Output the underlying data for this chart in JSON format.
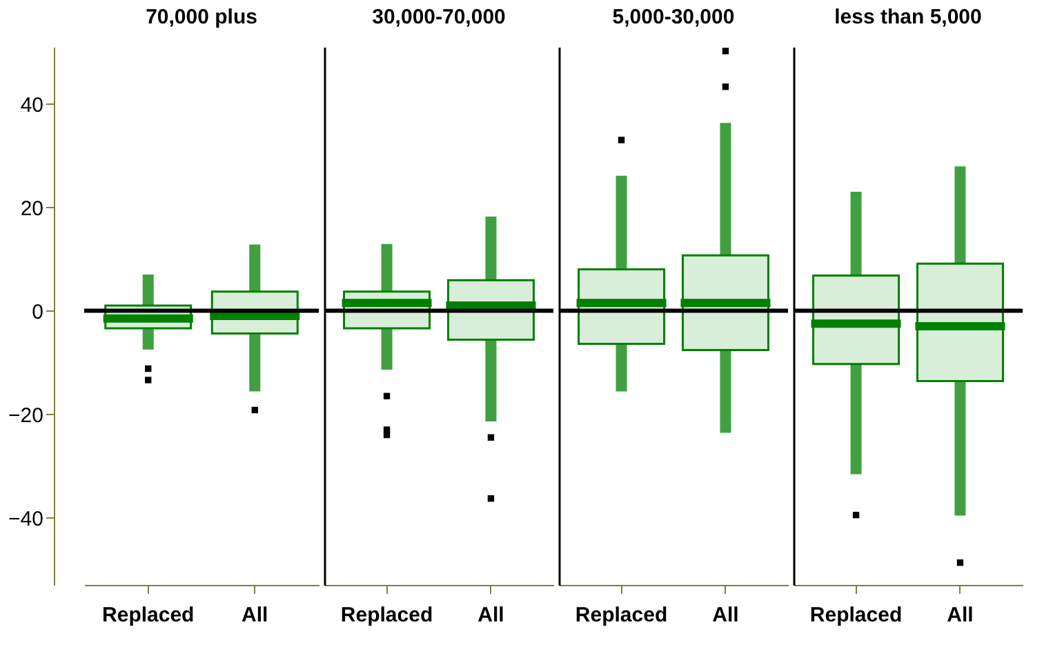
{
  "chart_data": [
    {
      "type": "box",
      "title": "70,000 plus",
      "categories": [
        "Replaced",
        "All"
      ],
      "ylim": [
        -53,
        51
      ],
      "yticks": [
        -40,
        -20,
        0,
        20,
        40
      ],
      "marker": "square",
      "ref_lines": [
        {
          "axis": "y",
          "value": 0,
          "color": "#000000"
        }
      ],
      "series": [
        {
          "color": "#008000",
          "boxes": [
            {
              "low": -7.5,
              "q1": -3.4,
              "median": -1.5,
              "q3": 1,
              "high": 7,
              "outliers": [
                -11.2,
                -13.4
              ]
            },
            {
              "low": -15.6,
              "q1": -4.4,
              "median": -1,
              "q3": 3.7,
              "high": 12.8,
              "outliers": [
                -19.2
              ]
            }
          ]
        }
      ]
    },
    {
      "type": "box",
      "title": "30,000-70,000",
      "categories": [
        "Replaced",
        "All"
      ],
      "ylim": [
        -53,
        51
      ],
      "yticks": [
        -40,
        -20,
        0,
        20,
        40
      ],
      "tick_labels": "x",
      "marker": "square",
      "ref_lines": [
        {
          "axis": "y",
          "value": 0,
          "color": "#000000"
        }
      ],
      "series": [
        {
          "color": "#008000",
          "boxes": [
            {
              "low": -11.4,
              "q1": -3.4,
              "median": 1.5,
              "q3": 3.7,
              "high": 12.9,
              "outliers": [
                -16.5,
                -23,
                -24
              ]
            },
            {
              "low": -21.4,
              "q1": -5.6,
              "median": 1,
              "q3": 5.9,
              "high": 18.2,
              "outliers": [
                -24.5,
                -36.3
              ]
            }
          ]
        }
      ]
    },
    {
      "type": "box",
      "title": "5,000-30,000",
      "categories": [
        "Replaced",
        "All"
      ],
      "ylim": [
        -53,
        51
      ],
      "yticks": [
        -40,
        -20,
        0,
        20,
        40
      ],
      "tick_labels": "x",
      "marker": "square",
      "ref_lines": [
        {
          "axis": "y",
          "value": 0,
          "color": "#000000"
        }
      ],
      "series": [
        {
          "color": "#008000",
          "boxes": [
            {
              "low": -15.6,
              "q1": -6.4,
              "median": 1.5,
              "q3": 8,
              "high": 26.1,
              "outliers": [
                33
              ]
            },
            {
              "low": -23.6,
              "q1": -7.6,
              "median": 1.5,
              "q3": 10.7,
              "high": 36.3,
              "outliers": [
                43.3,
                50.2
              ]
            }
          ]
        }
      ]
    },
    {
      "type": "box",
      "title": "less than 5,000",
      "categories": [
        "Replaced",
        "All"
      ],
      "ylim": [
        -53,
        51
      ],
      "yticks": [
        -40,
        -20,
        0,
        20,
        40
      ],
      "tick_labels": "x",
      "marker": "square",
      "ref_lines": [
        {
          "axis": "y",
          "value": 0,
          "color": "#000000"
        }
      ],
      "series": [
        {
          "color": "#008000",
          "boxes": [
            {
              "low": -31.6,
              "q1": -10.3,
              "median": -2.5,
              "q3": 6.8,
              "high": 23,
              "outliers": [
                -39.5
              ]
            },
            {
              "low": -39.6,
              "q1": -13.6,
              "median": -3,
              "q3": 9.1,
              "high": 27.9,
              "outliers": [
                -48.7
              ]
            }
          ]
        }
      ]
    }
  ]
}
